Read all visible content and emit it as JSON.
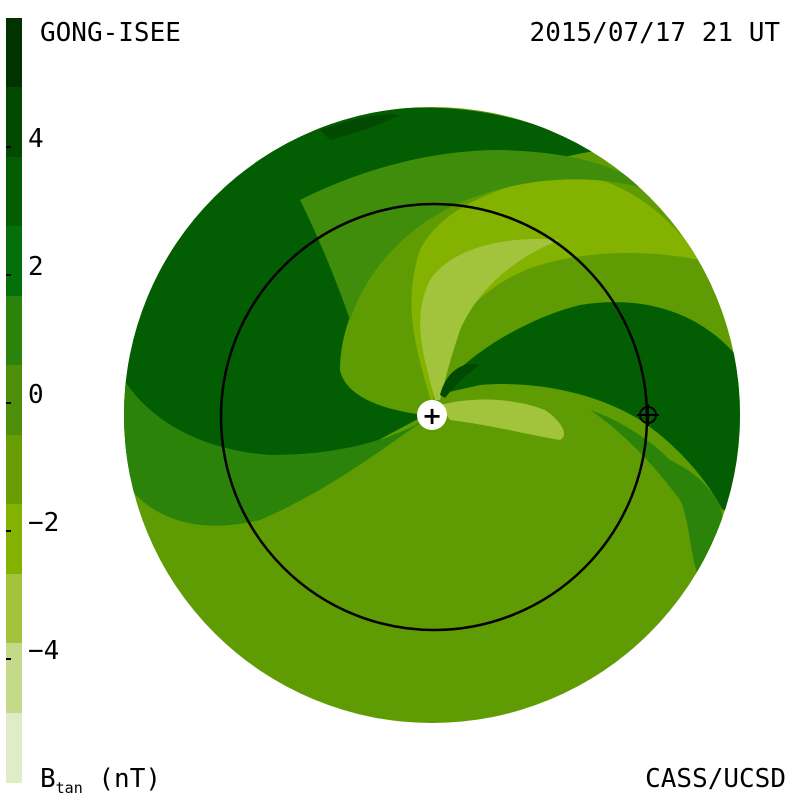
{
  "header": {
    "left_title": "GONG-ISEE",
    "timestamp": "2015/07/17 21 UT"
  },
  "footer": {
    "credit": "CASS/UCSD",
    "unit_symbol": "B",
    "unit_subscript": "tan",
    "unit": "(nT)"
  },
  "colorbar": {
    "ticks": [
      "4",
      "2",
      "0",
      "−2",
      "−4"
    ],
    "colors": [
      "#013301",
      "#024a02",
      "#035e03",
      "#04700b",
      "#2b8309",
      "#4d8f09",
      "#6a9d04",
      "#83b200",
      "#a2c43d",
      "#c4d98a",
      "#dfecc7"
    ]
  },
  "map": {
    "colors": {
      "dark": "#035e03",
      "darker": "#024a02",
      "mid": "#2b8309",
      "mid2": "#3f8d0a",
      "bg": "#5f9c04",
      "light": "#83b200",
      "lighter": "#a2c43d"
    },
    "sun_marker": "+",
    "earth_marker": "⊕"
  }
}
